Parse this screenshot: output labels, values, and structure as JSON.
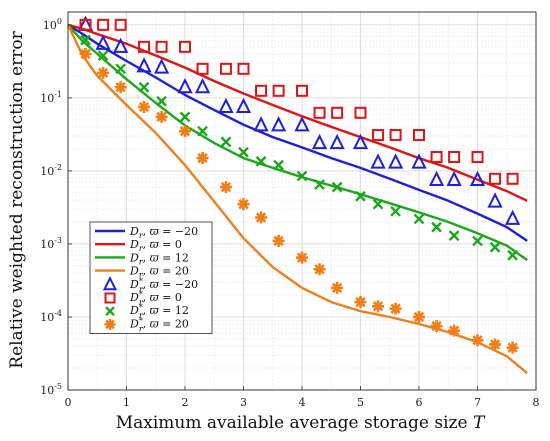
{
  "chart_data": {
    "type": "line",
    "xlabel": "Maximum available average storage size T",
    "ylabel": "Relative weighted reconstruction error",
    "xlim": [
      0,
      8
    ],
    "ylim": [
      1e-05,
      1.5
    ],
    "y_scale": "log",
    "grid": true,
    "legend_position": "bottom-left",
    "x_ticks": [
      "0",
      "1",
      "2",
      "3",
      "4",
      "5",
      "6",
      "7",
      "8"
    ],
    "y_ticks": [
      {
        "value": 1,
        "base": "10",
        "exp": "0"
      },
      {
        "value": 0.1,
        "base": "10",
        "exp": "-1"
      },
      {
        "value": 0.01,
        "base": "10",
        "exp": "-2"
      },
      {
        "value": 0.001,
        "base": "10",
        "exp": "-3"
      },
      {
        "value": 0.0001,
        "base": "10",
        "exp": "-4"
      },
      {
        "value": 1e-05,
        "base": "10",
        "exp": "-5"
      }
    ],
    "series": [
      {
        "name": "Dr, ϖ = −20",
        "kind": "line",
        "color": "#1f1fd6",
        "x": [
          0,
          0.25,
          0.5,
          1,
          1.5,
          2,
          2.5,
          3,
          3.5,
          4,
          4.5,
          5,
          5.5,
          6,
          6.5,
          7,
          7.5,
          7.85
        ],
        "y": [
          1.0,
          0.75,
          0.55,
          0.32,
          0.19,
          0.11,
          0.068,
          0.043,
          0.029,
          0.021,
          0.015,
          0.011,
          0.0078,
          0.0055,
          0.0039,
          0.0026,
          0.0017,
          0.0011
        ]
      },
      {
        "name": "Dr, ϖ = 0",
        "kind": "line",
        "color": "#e01414",
        "x": [
          0,
          0.25,
          0.5,
          1,
          1.5,
          2,
          2.5,
          3,
          3.5,
          4,
          4.5,
          5,
          5.5,
          6,
          6.5,
          7,
          7.5,
          7.85
        ],
        "y": [
          1.0,
          0.88,
          0.75,
          0.55,
          0.38,
          0.26,
          0.17,
          0.115,
          0.08,
          0.056,
          0.04,
          0.029,
          0.021,
          0.015,
          0.011,
          0.0076,
          0.0053,
          0.0039
        ]
      },
      {
        "name": "Dr, ϖ = 12",
        "kind": "line",
        "color": "#1aa81a",
        "x": [
          0,
          0.25,
          0.5,
          1,
          1.5,
          2,
          2.5,
          3,
          3.5,
          4,
          4.5,
          5,
          5.5,
          6,
          6.5,
          7,
          7.5,
          7.85
        ],
        "y": [
          1.0,
          0.6,
          0.4,
          0.18,
          0.085,
          0.042,
          0.024,
          0.015,
          0.011,
          0.0082,
          0.0063,
          0.0048,
          0.0036,
          0.0027,
          0.002,
          0.0014,
          0.00095,
          0.0006
        ]
      },
      {
        "name": "Dr, ϖ = 20",
        "kind": "line",
        "color": "#f07f17",
        "x": [
          0,
          0.25,
          0.5,
          1,
          1.5,
          2,
          2.5,
          3,
          3.5,
          4,
          4.5,
          5,
          5.5,
          6,
          6.5,
          7,
          7.5,
          7.85
        ],
        "y": [
          1.0,
          0.38,
          0.2,
          0.08,
          0.033,
          0.012,
          0.0038,
          0.0012,
          0.00048,
          0.00025,
          0.00016,
          0.00012,
          0.0001,
          8e-05,
          6.2e-05,
          4.5e-05,
          2.9e-05,
          1.7e-05
        ]
      },
      {
        "name": "D*r, ϖ = −20",
        "kind": "marker",
        "marker": "triangle",
        "color": "#1f1fd6",
        "x": [
          0.3,
          0.6,
          0.9,
          1.3,
          1.6,
          2.0,
          2.3,
          2.7,
          3.0,
          3.3,
          3.6,
          4.0,
          4.3,
          4.6,
          5.0,
          5.3,
          5.6,
          6.0,
          6.3,
          6.6,
          7.0,
          7.3,
          7.6
        ],
        "y": [
          1.0,
          0.55,
          0.5,
          0.27,
          0.26,
          0.14,
          0.14,
          0.075,
          0.075,
          0.042,
          0.042,
          0.042,
          0.024,
          0.024,
          0.024,
          0.013,
          0.013,
          0.013,
          0.0075,
          0.0075,
          0.0075,
          0.0038,
          0.0022
        ]
      },
      {
        "name": "D*r, ϖ = 0",
        "kind": "marker",
        "marker": "square",
        "color": "#e01414",
        "x": [
          0.3,
          0.6,
          0.9,
          1.3,
          1.6,
          2.0,
          2.3,
          2.7,
          3.0,
          3.3,
          3.6,
          4.0,
          4.3,
          4.6,
          5.0,
          5.3,
          5.6,
          6.0,
          6.3,
          6.6,
          7.0,
          7.3,
          7.6
        ],
        "y": [
          1.0,
          1.0,
          1.0,
          0.5,
          0.5,
          0.5,
          0.25,
          0.25,
          0.25,
          0.125,
          0.125,
          0.125,
          0.0625,
          0.0625,
          0.0625,
          0.031,
          0.031,
          0.031,
          0.0155,
          0.0155,
          0.0155,
          0.0078,
          0.0078
        ]
      },
      {
        "name": "D*r, ϖ = 12",
        "kind": "marker",
        "marker": "x",
        "color": "#1aa81a",
        "x": [
          0.3,
          0.6,
          0.9,
          1.3,
          1.6,
          2.0,
          2.3,
          2.7,
          3.0,
          3.3,
          3.6,
          4.0,
          4.3,
          4.6,
          5.0,
          5.3,
          5.6,
          6.0,
          6.3,
          6.6,
          7.0,
          7.3,
          7.6
        ],
        "y": [
          0.62,
          0.38,
          0.25,
          0.14,
          0.09,
          0.055,
          0.035,
          0.025,
          0.018,
          0.0135,
          0.012,
          0.0085,
          0.0065,
          0.006,
          0.0045,
          0.0035,
          0.0028,
          0.0022,
          0.0017,
          0.0013,
          0.0011,
          0.0009,
          0.0007
        ]
      },
      {
        "name": "D*r, ϖ = 20",
        "kind": "marker",
        "marker": "asterisk",
        "color": "#f07f17",
        "x": [
          0.3,
          0.6,
          0.9,
          1.3,
          1.6,
          2.0,
          2.3,
          2.7,
          3.0,
          3.3,
          3.6,
          4.0,
          4.3,
          4.6,
          5.0,
          5.3,
          5.6,
          6.0,
          6.3,
          6.6,
          7.0,
          7.3,
          7.6
        ],
        "y": [
          0.4,
          0.22,
          0.14,
          0.075,
          0.055,
          0.035,
          0.015,
          0.006,
          0.0035,
          0.0023,
          0.0011,
          0.00065,
          0.00045,
          0.00025,
          0.00016,
          0.00014,
          0.00013,
          0.0001,
          7.5e-05,
          6.5e-05,
          4.8e-05,
          4.2e-05,
          3.8e-05
        ]
      }
    ]
  },
  "legend": {
    "entries": [
      {
        "base": "D",
        "sub": "r",
        "sup": "",
        "value": "−20",
        "style": "line",
        "marker": "",
        "color": "#1f1fd6"
      },
      {
        "base": "D",
        "sub": "r",
        "sup": "",
        "value": "0",
        "style": "line",
        "marker": "",
        "color": "#e01414"
      },
      {
        "base": "D",
        "sub": "r",
        "sup": "",
        "value": "12",
        "style": "line",
        "marker": "",
        "color": "#1aa81a"
      },
      {
        "base": "D",
        "sub": "r",
        "sup": "",
        "value": "20",
        "style": "line",
        "marker": "",
        "color": "#f07f17"
      },
      {
        "base": "D",
        "sub": "r",
        "sup": "*",
        "value": "−20",
        "style": "marker",
        "marker": "triangle",
        "color": "#1f1fd6"
      },
      {
        "base": "D",
        "sub": "r",
        "sup": "*",
        "value": "0",
        "style": "marker",
        "marker": "square",
        "color": "#e01414"
      },
      {
        "base": "D",
        "sub": "r",
        "sup": "*",
        "value": "12",
        "style": "marker",
        "marker": "x",
        "color": "#1aa81a"
      },
      {
        "base": "D",
        "sub": "r",
        "sup": "*",
        "value": "20",
        "style": "marker",
        "marker": "asterisk",
        "color": "#f07f17"
      }
    ],
    "symbol": "ϖ"
  }
}
